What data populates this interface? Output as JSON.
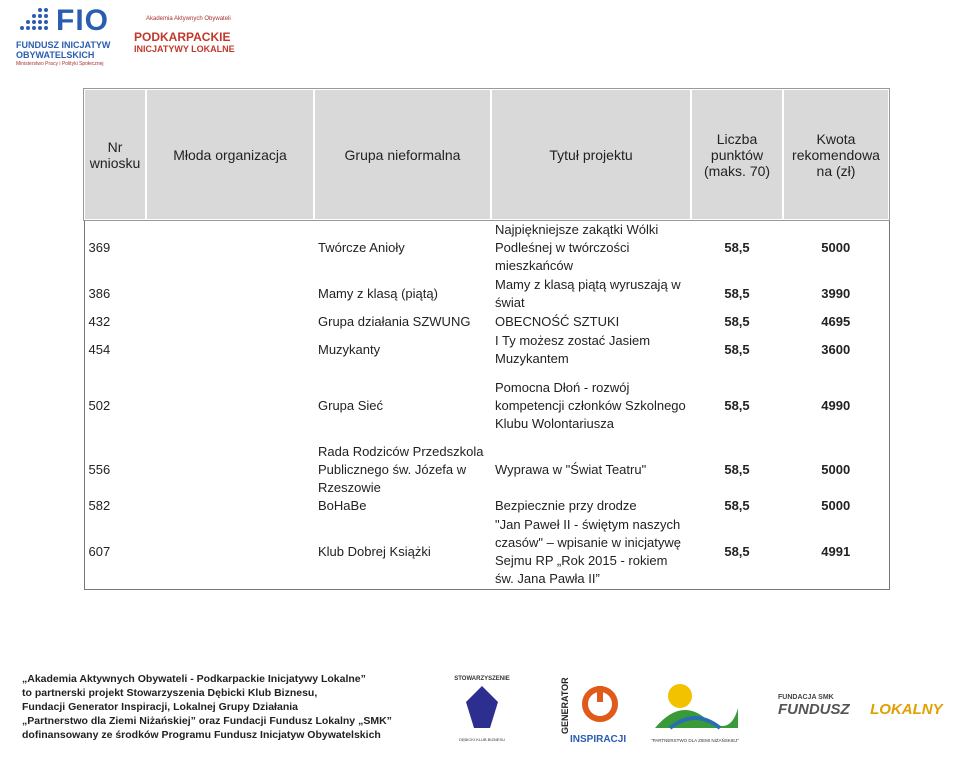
{
  "header": {
    "fio": "FIO",
    "fio_line1": "FUNDUSZ INICJATYW",
    "fio_line2": "OBYWATELSKICH",
    "ministry": "Ministerstwo Pracy i Polityki Społecznej",
    "academy": "Akademia Aktywnych Obywateli",
    "pil_line1": "PODKARPACKIE",
    "pil_line2": "INICJATYWY LOKALNE"
  },
  "table": {
    "columns": [
      "Nr wniosku",
      "Młoda organizacja",
      "Grupa nieformalna",
      "Tytuł projektu",
      "Liczba punktów (maks. 70)",
      "Kwota rekomendowa na (zł)"
    ],
    "rows": [
      {
        "nr": "369",
        "grupa": "Twórcze Anioły",
        "tytul": "Najpiękniejsze zakątki Wólki Podleśnej w twórczości mieszkańców",
        "punkty": "58,5",
        "kwota": "5000"
      },
      {
        "nr": "386",
        "grupa": "Mamy z klasą (piątą)",
        "tytul": "Mamy z klasą piątą wyruszają w świat",
        "punkty": "58,5",
        "kwota": "3990"
      },
      {
        "nr": "432",
        "grupa": "Grupa działania SZWUNG",
        "tytul": "OBECNOŚĆ SZTUKI",
        "punkty": "58,5",
        "kwota": "4695"
      },
      {
        "nr": "454",
        "grupa": "Muzykanty",
        "tytul": "I Ty możesz zostać Jasiem Muzykantem",
        "punkty": "58,5",
        "kwota": "3600"
      },
      {
        "nr": "502",
        "grupa": "Grupa Sieć",
        "tytul": "Pomocna Dłoń - rozwój kompetencji członków Szkolnego Klubu Wolontariusza",
        "punkty": "58,5",
        "kwota": "4990"
      },
      {
        "nr": "556",
        "grupa": "Rada Rodziców Przedszkola Publicznego św. Józefa w Rzeszowie",
        "tytul": "Wyprawa w \"Świat Teatru\"",
        "punkty": "58,5",
        "kwota": "5000"
      },
      {
        "nr": "582",
        "grupa": "BoHaBe",
        "tytul": "Bezpiecznie przy drodze",
        "punkty": "58,5",
        "kwota": "5000"
      },
      {
        "nr": "607",
        "grupa": "Klub Dobrej Książki",
        "tytul": "\"Jan Paweł II - świętym naszych czasów\" – wpisanie w inicjatywę Sejmu RP „Rok 2015 - rokiem św. Jana Pawła II”",
        "punkty": "58,5",
        "kwota": "4991"
      }
    ]
  },
  "footer": {
    "lines": [
      "„Akademia Aktywnych Obywateli - Podkarpackie Inicjatywy Lokalne”",
      "to partnerski projekt Stowarzyszenia Dębicki Klub Biznesu,",
      "Fundacji Generator Inspiracji, Lokalnej Grupy Działania",
      "„Partnerstwo dla Ziemi Niżańskiej” oraz Fundacji Fundusz Lokalny „SMK”",
      "dofinansowany ze środków Programu Fundusz Inicjatyw Obywatelskich"
    ],
    "dkb_top": "STOWARZYSZENIE",
    "dkb_bottom": "DĘBICKI KLUB BIZNESU",
    "gen_top": "GENERATOR",
    "gen_bottom": "INSPIRACJI",
    "lgd": "\"PARTNERSTWO DLA ZIEMI NIŻAŃSKIEJ\"",
    "smk_top": "FUNDACJA SMK",
    "smk_mid": "FUNDUSZ",
    "smk_bottom": "LOKALNY"
  }
}
